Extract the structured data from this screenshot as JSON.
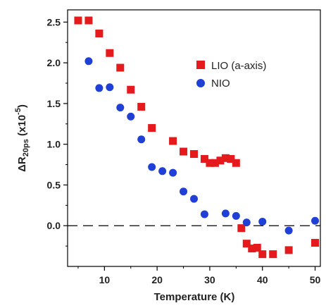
{
  "chart_data": {
    "type": "scatter",
    "xlabel": "Temperature (K)",
    "ylabel": {
      "main": "ΔR",
      "subscript": "20ps",
      "unit_prefix": " (x10",
      "exponent": "-5",
      "unit_suffix": ")"
    },
    "xlim": [
      3,
      51
    ],
    "ylim": [
      -0.5,
      2.65
    ],
    "xticks": [
      10,
      20,
      30,
      40,
      50
    ],
    "yticks": [
      0.0,
      0.5,
      1.0,
      1.5,
      2.0,
      2.5
    ],
    "ytick_labels": [
      "0.0",
      "0.5",
      "1.0",
      "1.5",
      "2.0",
      "2.5"
    ],
    "reference_line": {
      "y": 0.0,
      "style": "dashed"
    },
    "grid": false,
    "legend_position": "top-right",
    "series": [
      {
        "name": "LIO (a-axis)",
        "marker": "square",
        "color": "#e41a1c",
        "points": [
          [
            5,
            2.52
          ],
          [
            7,
            2.52
          ],
          [
            9,
            2.36
          ],
          [
            11,
            2.12
          ],
          [
            13,
            1.94
          ],
          [
            15,
            1.67
          ],
          [
            17,
            1.46
          ],
          [
            19,
            1.2
          ],
          [
            23,
            1.04
          ],
          [
            25,
            0.91
          ],
          [
            27,
            0.88
          ],
          [
            29,
            0.82
          ],
          [
            30,
            0.77
          ],
          [
            31,
            0.77
          ],
          [
            32,
            0.8
          ],
          [
            33,
            0.83
          ],
          [
            34,
            0.82
          ],
          [
            35,
            0.77
          ],
          [
            36,
            -0.03
          ],
          [
            37,
            -0.22
          ],
          [
            38,
            -0.28
          ],
          [
            39,
            -0.27
          ],
          [
            40,
            -0.35
          ],
          [
            42,
            -0.35
          ],
          [
            45,
            -0.3
          ],
          [
            50,
            -0.21
          ]
        ]
      },
      {
        "name": "NIO",
        "marker": "circle",
        "color": "#1f3fd6",
        "points": [
          [
            7,
            2.02
          ],
          [
            9,
            1.69
          ],
          [
            11,
            1.7
          ],
          [
            13,
            1.45
          ],
          [
            15,
            1.34
          ],
          [
            17,
            1.06
          ],
          [
            19,
            0.72
          ],
          [
            21,
            0.67
          ],
          [
            23,
            0.65
          ],
          [
            25,
            0.42
          ],
          [
            27,
            0.33
          ],
          [
            29,
            0.14
          ],
          [
            33,
            0.15
          ],
          [
            35,
            0.12
          ],
          [
            37,
            0.04
          ],
          [
            40,
            0.05
          ],
          [
            45,
            -0.06
          ],
          [
            50,
            0.06
          ]
        ]
      }
    ]
  }
}
